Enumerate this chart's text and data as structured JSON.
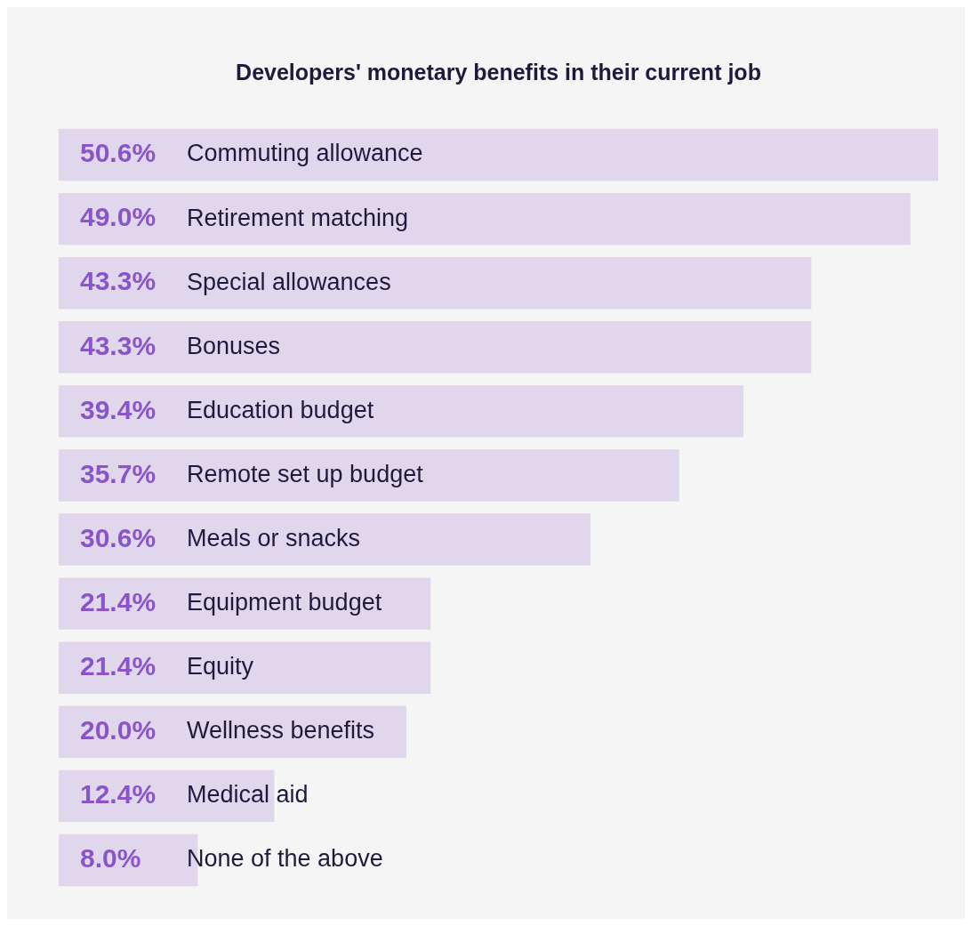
{
  "chart_data": {
    "type": "bar",
    "orientation": "horizontal",
    "title": "Developers' monetary benefits in their current job",
    "categories": [
      "Commuting allowance",
      "Retirement matching",
      "Special allowances",
      "Bonuses",
      "Education budget",
      "Remote set up budget",
      "Meals or snacks",
      "Equipment budget",
      "Equity",
      "Wellness benefits",
      "Medical aid",
      "None of the above"
    ],
    "values": [
      50.6,
      49.0,
      43.3,
      43.3,
      39.4,
      35.7,
      30.6,
      21.4,
      21.4,
      20.0,
      12.4,
      8.0
    ],
    "value_labels": [
      "50.6%",
      "49.0%",
      "43.3%",
      "43.3%",
      "39.4%",
      "35.7%",
      "30.6%",
      "21.4%",
      "21.4%",
      "20.0%",
      "12.4%",
      "8.0%"
    ],
    "color": "#e0d7ec"
  }
}
